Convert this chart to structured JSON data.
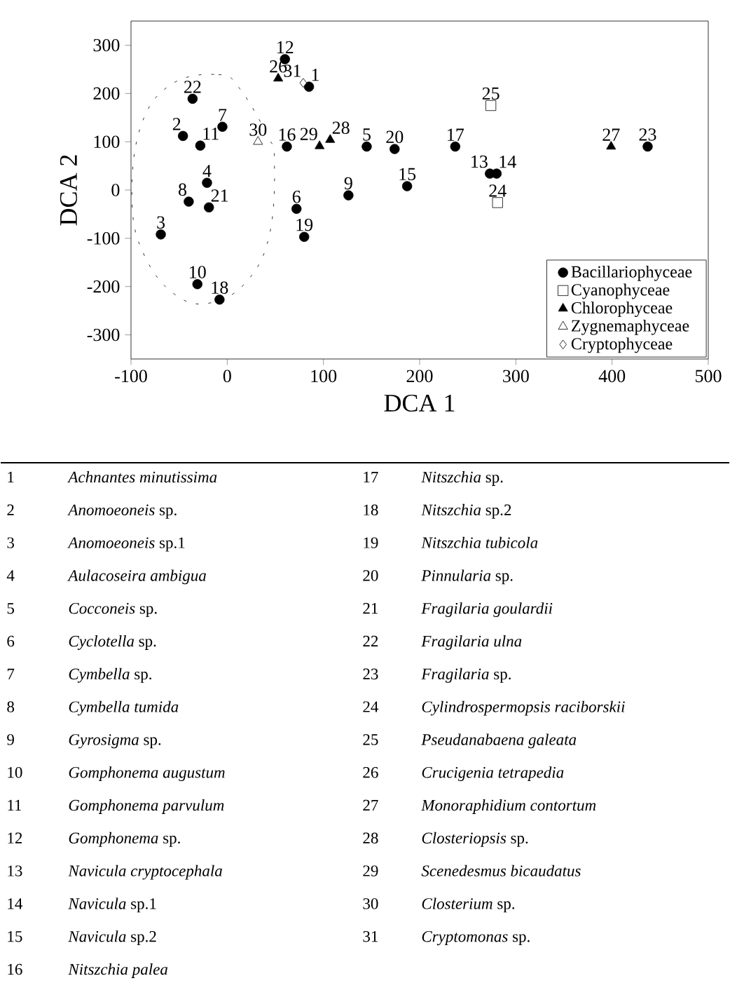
{
  "chart_data": {
    "type": "scatter",
    "xlabel": "DCA 1",
    "ylabel": "DCA 2",
    "xlim": [
      -100,
      500
    ],
    "ylim": [
      -350,
      350
    ],
    "xticks": [
      -100,
      0,
      100,
      200,
      300,
      400,
      500
    ],
    "yticks": [
      -300,
      -200,
      -100,
      0,
      100,
      200,
      300
    ],
    "grid": false,
    "legend": "bottom right",
    "series": [
      {
        "name": "Bacillariophyceae",
        "color": "#000000",
        "marker": "circle",
        "x": [
          85,
          -46,
          -69,
          -21,
          145,
          72,
          -5,
          -40,
          126,
          -31,
          -28,
          60,
          273,
          280,
          187,
          62,
          237,
          -8,
          80,
          174,
          -19,
          -36,
          437
        ],
        "values": [
          214,
          112,
          -92,
          15,
          90,
          -39,
          131,
          -24,
          -11,
          -195,
          92,
          271,
          34,
          34,
          8,
          90,
          90,
          -227,
          -97,
          85,
          -36,
          189,
          90
        ]
      },
      {
        "name": "Cyanophyceae",
        "color": "#ffffff",
        "marker": "square",
        "x": [
          281,
          274
        ],
        "values": [
          -26,
          175
        ]
      },
      {
        "name": "Chlorophyceae",
        "color": "#000000",
        "marker": "triangle",
        "x": [
          53,
          399,
          107,
          96
        ],
        "values": [
          231,
          90,
          104,
          91
        ]
      },
      {
        "name": "Zygnemaphyceae",
        "color": "#ffffff",
        "marker": "triangle",
        "x": [
          32
        ],
        "values": [
          100
        ]
      },
      {
        "name": "Cryptophyceae",
        "color": "#ffffff",
        "marker": "diamond",
        "x": [
          79
        ],
        "values": [
          222
        ]
      }
    ],
    "annotations": [
      {
        "text": "1",
        "x": 85,
        "y": 214
      },
      {
        "text": "2",
        "x": -46,
        "y": 112
      },
      {
        "text": "3",
        "x": -69,
        "y": -92
      },
      {
        "text": "4",
        "x": -21,
        "y": 15
      },
      {
        "text": "5",
        "x": 145,
        "y": 90
      },
      {
        "text": "6",
        "x": 72,
        "y": -39
      },
      {
        "text": "7",
        "x": -5,
        "y": 131
      },
      {
        "text": "8",
        "x": -40,
        "y": -24
      },
      {
        "text": "9",
        "x": 126,
        "y": -11
      },
      {
        "text": "10",
        "x": -31,
        "y": -195
      },
      {
        "text": "11",
        "x": -28,
        "y": 92
      },
      {
        "text": "12",
        "x": 60,
        "y": 271
      },
      {
        "text": "13",
        "x": 273,
        "y": 34
      },
      {
        "text": "14",
        "x": 280,
        "y": 34
      },
      {
        "text": "15",
        "x": 187,
        "y": 8
      },
      {
        "text": "16",
        "x": 62,
        "y": 90
      },
      {
        "text": "17",
        "x": 237,
        "y": 90
      },
      {
        "text": "18",
        "x": -8,
        "y": -227
      },
      {
        "text": "19",
        "x": 80,
        "y": -97
      },
      {
        "text": "20",
        "x": 174,
        "y": 85
      },
      {
        "text": "21",
        "x": -19,
        "y": -36
      },
      {
        "text": "22",
        "x": -36,
        "y": 189
      },
      {
        "text": "23",
        "x": 437,
        "y": 90
      },
      {
        "text": "24",
        "x": 281,
        "y": -26
      },
      {
        "text": "25",
        "x": 274,
        "y": 175
      },
      {
        "text": "26",
        "x": 53,
        "y": 231
      },
      {
        "text": "27",
        "x": 399,
        "y": 90
      },
      {
        "text": "28",
        "x": 107,
        "y": 104
      },
      {
        "text": "29",
        "x": 96,
        "y": 91
      },
      {
        "text": "30",
        "x": 32,
        "y": 100
      },
      {
        "text": "31",
        "x": 79,
        "y": 222
      },
      "1",
      "*Achnantes minutissima*",
      "2",
      "*Anomoeoneis* sp.",
      "3",
      "*Anomoeoneis* sp.1",
      "4",
      "*Aulacoseira ambigua*",
      "5",
      "*Cocconeis* sp.",
      "6",
      "*Cyclotella* sp.",
      "7",
      "*Cymbella* sp.",
      "8",
      "*Cymbella tumida*",
      "9",
      "*Gyrosigma* sp.",
      "10",
      "*Gomphonema augustum*",
      "11",
      "*Gomphonema parvulum*",
      "12",
      "*Gomphonema* sp.",
      "13",
      "*Navicula cryptocephala*",
      "14",
      "*Navicula* sp.1",
      "15",
      "*Navicula* sp.2",
      "16",
      "*Nitszchia palea*",
      "17",
      "*Nitszchia* sp.",
      "18",
      "*Nitszchia* sp.2",
      "19",
      "*Nitszchia tubicola*",
      "20",
      "*Pinnularia* sp.",
      "21",
      "*Fragilaria goulardii*",
      "22",
      "*Fragilaria ulna*",
      "23",
      "*Fragilaria* sp.",
      "24",
      "*Cylindrospermopsis raciborskii*",
      "25",
      "*Pseudanabaena galeata*",
      "26",
      "*Crucigenia tetrapedia*",
      "27",
      "*Monoraphidium contortum*",
      "28",
      "*Closteriopsis* sp.",
      "29",
      "*Scenedesmus bicaudatus*",
      "30",
      "*Closterium* sp.",
      "31",
      "*Cryptomonas* sp."
    ]
  }
}
